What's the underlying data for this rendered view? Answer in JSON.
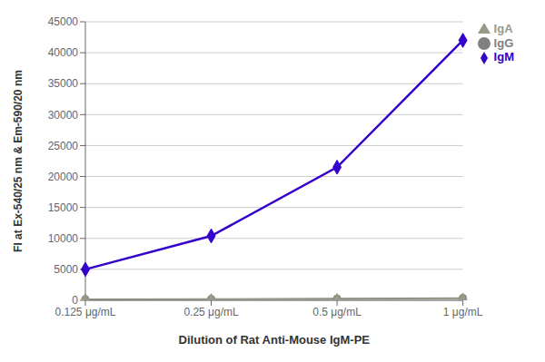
{
  "chart_data": {
    "type": "line",
    "categories": [
      "0.125 μg/mL",
      "0.25 μg/mL",
      "0.5 μg/mL",
      "1 μg/mL"
    ],
    "series": [
      {
        "name": "IgM",
        "color": "#3300cc",
        "marker": "diamond",
        "values": [
          5000,
          10400,
          21500,
          42000
        ]
      },
      {
        "name": "IgG",
        "color": "#808080",
        "marker": "circle",
        "values": [
          200,
          220,
          280,
          380
        ]
      },
      {
        "name": "IgA",
        "color": "#999988",
        "marker": "triangle",
        "values": [
          150,
          170,
          200,
          280
        ]
      }
    ],
    "xlabel": "Dilution of Rat Anti-Mouse IgM-PE",
    "ylabel": "FI at Ex-540/25 nm & Em-590/20 nm",
    "ylim": [
      0,
      45000
    ],
    "yticks": [
      0,
      5000,
      10000,
      15000,
      20000,
      25000,
      30000,
      35000,
      40000,
      45000
    ],
    "grid": true,
    "legend": "right"
  }
}
